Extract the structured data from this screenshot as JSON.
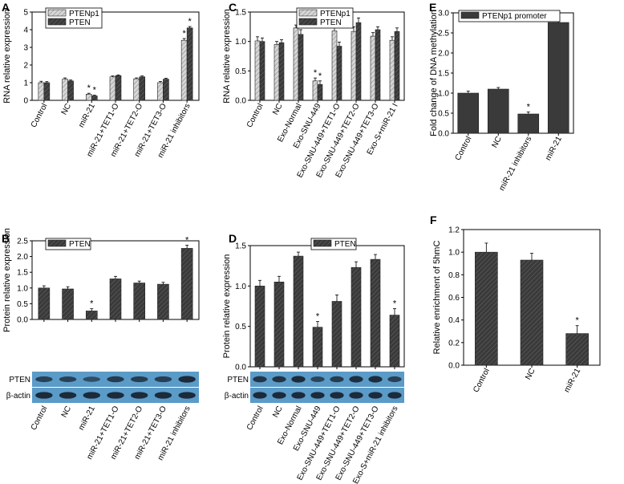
{
  "colors": {
    "dark_bar": "#3a3a3a",
    "light_bar": "#c4c4c4",
    "blot_bg": "#5b9bc8",
    "band": "#1c2a3a"
  },
  "chart_data": [
    {
      "id": "A",
      "type": "bar",
      "ylabel": "RNA relative expression",
      "ylim": [
        0,
        5
      ],
      "yticks": [
        0,
        1,
        2,
        3,
        4,
        5
      ],
      "categories": [
        "Control",
        "NC",
        "miR-21",
        "miR-21+TET1-O",
        "miR-21+TET2-O",
        "miR-21+TET3-O",
        "miR-21 inhibitors"
      ],
      "series": [
        {
          "name": "PTENp1",
          "pattern": "hatch-light",
          "values": [
            1.0,
            1.2,
            0.35,
            1.33,
            1.22,
            1.0,
            3.4
          ],
          "errors": [
            0.08,
            0.07,
            0.05,
            0.05,
            0.05,
            0.07,
            0.1
          ]
        },
        {
          "name": "PTEN",
          "pattern": "hatch-dark",
          "values": [
            1.0,
            1.1,
            0.25,
            1.4,
            1.33,
            1.2,
            4.1
          ],
          "errors": [
            0.06,
            0.05,
            0.04,
            0.04,
            0.05,
            0.05,
            0.08
          ]
        }
      ],
      "stars": [
        [
          2,
          0
        ],
        [
          2,
          1
        ],
        [
          6,
          0
        ],
        [
          6,
          1
        ]
      ],
      "legend": [
        "PTENp1",
        "PTEN"
      ]
    },
    {
      "id": "B",
      "type": "bar",
      "ylabel": "Protein relative expression",
      "ylim": [
        0,
        2.5
      ],
      "yticks": [
        0.0,
        0.5,
        1.0,
        1.5,
        2.0,
        2.5
      ],
      "categories": [
        "Control",
        "NC",
        "miR-21",
        "miR-21+TET1-O",
        "miR-21+TET2-O",
        "miR-21+TET3-O",
        "miR-21 inhibitors"
      ],
      "series": [
        {
          "name": "PTEN",
          "pattern": "hatch-dark",
          "values": [
            1.0,
            0.97,
            0.27,
            1.29,
            1.16,
            1.12,
            2.26
          ],
          "errors": [
            0.07,
            0.07,
            0.07,
            0.08,
            0.06,
            0.06,
            0.1
          ]
        }
      ],
      "stars": [
        [
          2,
          0
        ],
        [
          6,
          0
        ]
      ],
      "legend": [
        "PTEN"
      ],
      "blots": [
        "PTEN",
        "β-actin"
      ]
    },
    {
      "id": "C",
      "type": "bar",
      "ylabel": "RNA relative expression",
      "ylim": [
        0,
        1.5
      ],
      "yticks": [
        0.0,
        0.5,
        1.0,
        1.5
      ],
      "categories": [
        "Control",
        "NC",
        "Exo-Normal",
        "Exo-SNU-449",
        "Exo-SNU-449+TET1-O",
        "Exo-SNU-449+TET2-O",
        "Exo-SNU-449+TET3-O",
        "Exo-S+miR-21 I"
      ],
      "series": [
        {
          "name": "PTENp1",
          "pattern": "hatch-light",
          "values": [
            1.01,
            0.95,
            1.23,
            0.33,
            1.18,
            1.17,
            1.09,
            1.02
          ],
          "errors": [
            0.07,
            0.05,
            0.05,
            0.05,
            0.07,
            0.08,
            0.06,
            0.06
          ]
        },
        {
          "name": "PTEN",
          "pattern": "hatch-dark",
          "values": [
            1.0,
            0.98,
            1.12,
            0.27,
            0.92,
            1.32,
            1.2,
            1.17
          ],
          "errors": [
            0.06,
            0.05,
            0.08,
            0.06,
            0.07,
            0.08,
            0.05,
            0.06
          ]
        }
      ],
      "stars": [
        [
          3,
          0
        ],
        [
          3,
          1
        ]
      ],
      "legend": [
        "PTENp1",
        "PTEN"
      ]
    },
    {
      "id": "D",
      "type": "bar",
      "ylabel": "Protein relative expression",
      "ylim": [
        0,
        1.5
      ],
      "yticks": [
        0.0,
        0.5,
        1.0,
        1.5
      ],
      "categories": [
        "Control",
        "NC",
        "Exo-Normal",
        "Exo-SNU-449",
        "Exo-SNU-449+TET1-O",
        "Exo-SNU-449+TET2-O",
        "Exo-SNU-449+TET3-O",
        "Exo-S+miR-21 inhibitors"
      ],
      "series": [
        {
          "name": "PTEN",
          "pattern": "hatch-dark",
          "values": [
            1.0,
            1.05,
            1.37,
            0.49,
            0.81,
            1.23,
            1.33,
            0.64
          ],
          "errors": [
            0.07,
            0.07,
            0.05,
            0.07,
            0.08,
            0.07,
            0.06,
            0.08
          ]
        }
      ],
      "stars": [
        [
          3,
          0
        ],
        [
          7,
          0
        ]
      ],
      "legend": [
        "PTEN"
      ],
      "blots": [
        "PTEN",
        "β-actin"
      ]
    },
    {
      "id": "E",
      "type": "bar",
      "ylabel": "Fold change of DNA methylation",
      "ylim": [
        0,
        3.0
      ],
      "yticks": [
        0.0,
        0.5,
        1.0,
        1.5,
        2.0,
        2.5,
        3.0
      ],
      "categories": [
        "Control",
        "NC",
        "miR-21 inhibitors",
        "miR-21"
      ],
      "series": [
        {
          "name": "PTENp1 promoter",
          "pattern": "solid",
          "values": [
            1.0,
            1.1,
            0.48,
            2.76
          ],
          "errors": [
            0.05,
            0.04,
            0.05,
            0.1
          ]
        }
      ],
      "stars": [
        [
          2,
          0
        ],
        [
          3,
          0
        ]
      ],
      "legend": [
        "PTENp1 promoter"
      ]
    },
    {
      "id": "F",
      "type": "bar",
      "ylabel": "Relative enrichment of 5hmC",
      "ylim": [
        0,
        1.2
      ],
      "yticks": [
        0.0,
        0.2,
        0.4,
        0.6,
        0.8,
        1.0,
        1.2
      ],
      "categories": [
        "Control",
        "NC",
        "miR-21"
      ],
      "series": [
        {
          "name": "5hmC",
          "pattern": "hatch-dark",
          "values": [
            1.0,
            0.93,
            0.28
          ],
          "errors": [
            0.08,
            0.06,
            0.07
          ]
        }
      ],
      "stars": [
        [
          2,
          0
        ]
      ],
      "legend": []
    }
  ]
}
